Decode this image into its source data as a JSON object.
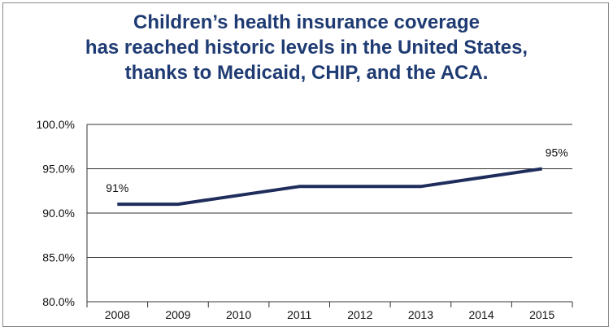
{
  "chart_data": {
    "type": "line",
    "title_lines": [
      "Children’s health insurance coverage",
      "has reached historic levels in the United States,",
      "thanks to Medicaid, CHIP, and the ACA."
    ],
    "xlabel": "",
    "ylabel": "",
    "categories": [
      "2008",
      "2009",
      "2010",
      "2011",
      "2012",
      "2013",
      "2014",
      "2015"
    ],
    "series": [
      {
        "values": [
          91,
          91,
          92,
          93,
          93,
          93,
          94,
          95
        ]
      }
    ],
    "ylim": [
      80,
      100
    ],
    "yticks": [
      "80.0%",
      "85.0%",
      "90.0%",
      "95.0%",
      "100.0%"
    ],
    "data_labels": [
      {
        "index": 0,
        "text": "91%"
      },
      {
        "index": 7,
        "text": "95%"
      }
    ],
    "grid": "horizontal",
    "legend": "none",
    "colors": {
      "line": "#1f2d5c",
      "title": "#1f3b73",
      "grid": "#333333"
    }
  }
}
